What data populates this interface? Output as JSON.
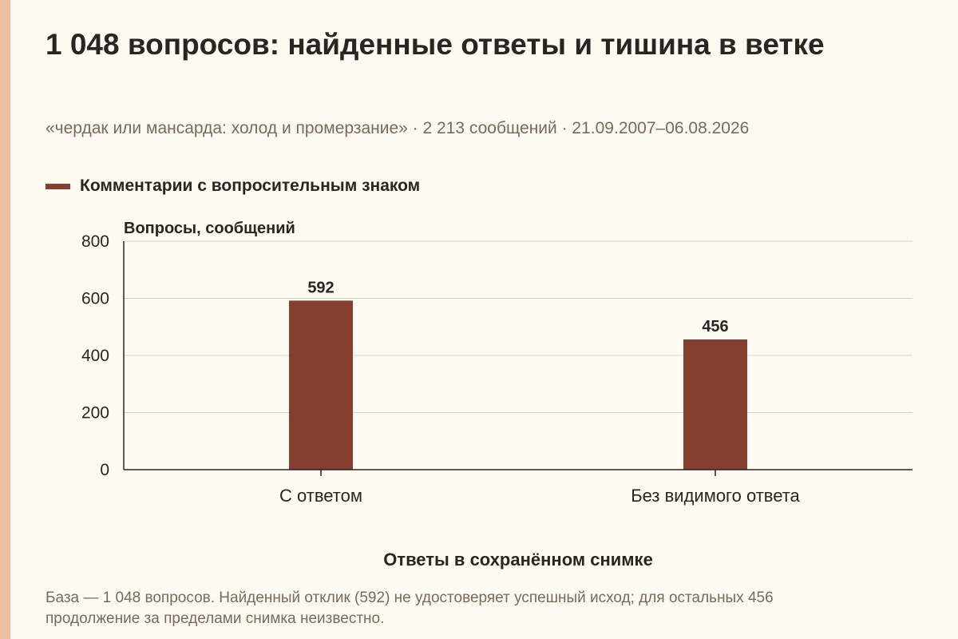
{
  "header": {
    "title": "1 048 вопросов: найденные ответы и тишина в ветке",
    "subtitle": "«чердак или мансарда: холод и промерзание» · 2 213 сообщений · 21.09.2007–06.08.2026"
  },
  "legend": {
    "label": "Комментарии с вопросительным знаком",
    "color": "#843f31"
  },
  "chart_data": {
    "type": "bar",
    "title": "1 048 вопросов: найденные ответы и тишина в ветке",
    "ylabel": "Вопросы, сообщений",
    "xlabel": "Ответы в сохранённом снимке",
    "categories": [
      "С ответом",
      "Без видимого ответа"
    ],
    "series": [
      {
        "name": "Комментарии с вопросительным знаком",
        "values": [
          592,
          456
        ],
        "color": "#843f31"
      }
    ],
    "ylim": [
      0,
      800
    ],
    "yticks": [
      0,
      200,
      400,
      600,
      800
    ],
    "grid": true,
    "legend_position": "top-left"
  },
  "footnote": "База — 1 048 вопросов. Найденный отклик (592) не удостоверяет успешный исход; для остальных 456 продолжение за пределами снимка неизвестно."
}
